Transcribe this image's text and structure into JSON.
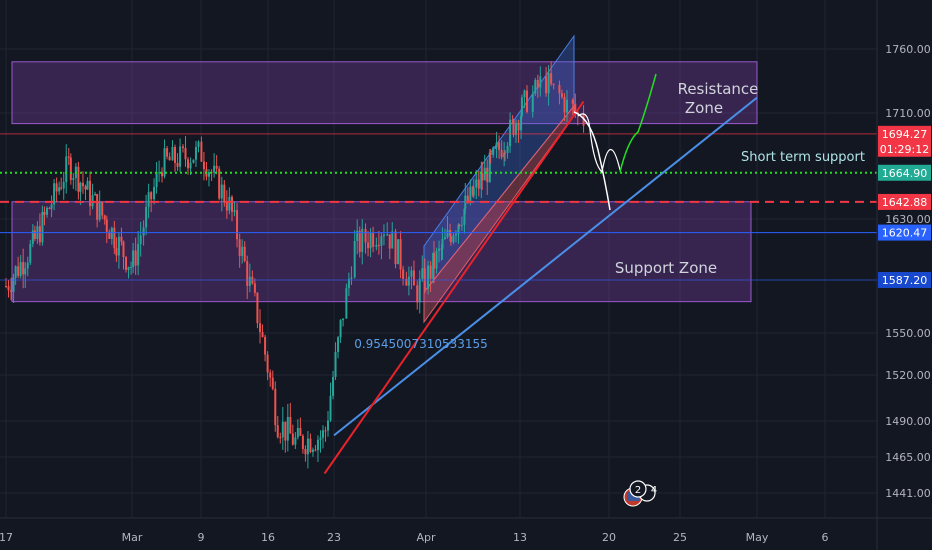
{
  "chart_data": {
    "type": "candlestick",
    "instrument_note": "",
    "y_axis": {
      "ylim": [
        1427,
        1771
      ],
      "ticks": [
        "1760.00",
        "1710.00",
        "1630.00",
        "1550.00",
        "1520.00",
        "1490.00",
        "1465.00",
        "1441.00"
      ],
      "tick_values": [
        1760,
        1710,
        1630,
        1550,
        1520,
        1490,
        1465,
        1441
      ]
    },
    "x_axis": {
      "labels": [
        "17",
        "Mar",
        "9",
        "16",
        "23",
        "Apr",
        "13",
        "20",
        "25",
        "May",
        "6"
      ],
      "dates": [
        "2020-02-17",
        "2020-03-02",
        "2020-03-09",
        "2020-03-16",
        "2020-03-23",
        "2020-04-01",
        "2020-04-13",
        "2020-04-20",
        "2020-04-25",
        "2020-05-01",
        "2020-05-06"
      ]
    },
    "price_badges": [
      {
        "value": "1694.27",
        "price": 1694.27,
        "color": "#f23645"
      },
      {
        "value": "01:29:12",
        "price": 1683,
        "color": "#f23645"
      },
      {
        "value": "1664.90",
        "price": 1664.9,
        "color": "#22ab94"
      },
      {
        "value": "1642.88",
        "price": 1642.88,
        "color": "#f23645"
      },
      {
        "value": "1620.47",
        "price": 1620.47,
        "color": "#2962ff"
      },
      {
        "value": "1587.20",
        "price": 1587.2,
        "color": "#1848cc"
      }
    ],
    "zones": [
      {
        "label_lines": [
          "Resistance",
          "Zone"
        ],
        "price_top": 1750,
        "price_bottom": 1702,
        "date_start": "2020-02-17",
        "date_end": "2020-04-29"
      },
      {
        "label_lines": [
          "Support Zone"
        ],
        "price_top": 1643,
        "price_bottom": 1572,
        "date_start": "2020-02-17",
        "date_end": "2020-04-29"
      }
    ],
    "levels": [
      {
        "name": "Short term support",
        "price": 1664.9,
        "color": "#22dd22",
        "style": "dotted"
      },
      {
        "name": "",
        "price": 1642.88,
        "color": "#f23645",
        "style": "dashed"
      },
      {
        "name": "",
        "price": 1620.47,
        "color": "#2962ff",
        "style": "solid"
      },
      {
        "name": "",
        "price": 1694.27,
        "color": "#f23645",
        "style": "solid-thin"
      }
    ],
    "trendlines": [
      {
        "label": "0.9545007310533155",
        "color": "#4a8fe7",
        "from": {
          "date": "2020-03-23",
          "price": 1480
        },
        "to": {
          "date": "2020-05-01",
          "price": 1722
        }
      },
      {
        "label": "",
        "color": "#e8222b",
        "from": {
          "date": "2020-03-22",
          "price": 1454
        },
        "to": {
          "date": "2020-04-18",
          "price": 1719
        }
      }
    ],
    "candles_daily_close": [
      {
        "date": "2020-02-17",
        "price": 1583
      },
      {
        "date": "2020-02-20",
        "price": 1612
      },
      {
        "date": "2020-02-24",
        "price": 1672
      },
      {
        "date": "2020-02-27",
        "price": 1640
      },
      {
        "date": "2020-03-02",
        "price": 1596
      },
      {
        "date": "2020-03-05",
        "price": 1672
      },
      {
        "date": "2020-03-09",
        "price": 1680
      },
      {
        "date": "2020-03-12",
        "price": 1640
      },
      {
        "date": "2020-03-15",
        "price": 1560
      },
      {
        "date": "2020-03-17",
        "price": 1490
      },
      {
        "date": "2020-03-19",
        "price": 1475
      },
      {
        "date": "2020-03-22",
        "price": 1480
      },
      {
        "date": "2020-03-25",
        "price": 1610
      },
      {
        "date": "2020-03-28",
        "price": 1625
      },
      {
        "date": "2020-03-31",
        "price": 1578
      },
      {
        "date": "2020-04-04",
        "price": 1620
      },
      {
        "date": "2020-04-08",
        "price": 1660
      },
      {
        "date": "2020-04-12",
        "price": 1700
      },
      {
        "date": "2020-04-15",
        "price": 1735
      },
      {
        "date": "2020-04-18",
        "price": 1705
      }
    ]
  },
  "labels": {
    "resistance_line1": "Resistance",
    "resistance_line2": "Zone",
    "support": "Support Zone",
    "short_term": "Short term support",
    "ratio": "0.9545007310533155",
    "event_badge_num": "24"
  },
  "colors": {
    "background": "#131722",
    "bull": "#26a69a",
    "bear": "#ef5350",
    "zone_fill": "#7b3fa6",
    "channel_fill": "#3d6bd8",
    "accent_green": "#22dd22",
    "accent_blue": "#4a8fe7",
    "accent_red": "#e8222b"
  }
}
